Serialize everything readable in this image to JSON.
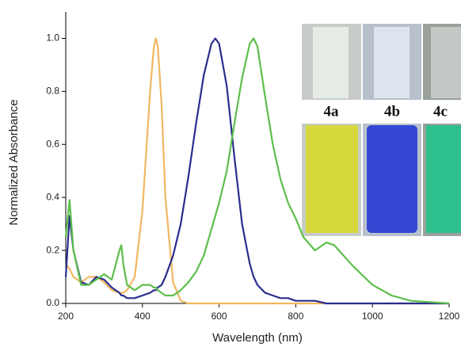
{
  "chart_data": {
    "type": "line",
    "x_label": "Wavelength (nm)",
    "y_label": "Normalized Absorbance",
    "x": [
      200,
      210,
      220,
      240,
      260,
      280,
      300,
      320,
      340,
      345,
      350,
      360,
      380,
      400,
      420,
      430,
      435,
      440,
      450,
      460,
      480,
      500,
      520,
      540,
      560,
      580,
      590,
      600,
      620,
      640,
      660,
      680,
      690,
      700,
      720,
      740,
      760,
      780,
      800,
      820,
      850,
      880,
      900,
      950,
      1000,
      1050,
      1100,
      1150,
      1200
    ],
    "series": [
      {
        "name": "4a",
        "color": "#f0b860",
        "values": [
          0.15,
          0.13,
          0.1,
          0.08,
          0.1,
          0.1,
          0.08,
          0.05,
          0.04,
          0.04,
          0.04,
          0.05,
          0.1,
          0.35,
          0.8,
          0.97,
          1.0,
          0.97,
          0.75,
          0.4,
          0.08,
          0.01,
          0,
          0,
          0,
          0,
          0,
          0,
          0,
          0,
          0,
          0,
          0,
          0,
          0,
          0,
          0,
          0,
          0,
          0,
          0,
          0,
          0,
          0,
          0,
          0,
          0,
          0,
          0
        ]
      },
      {
        "name": "4b",
        "color": "#2a2d8c",
        "values": [
          0.1,
          0.33,
          0.2,
          0.08,
          0.07,
          0.1,
          0.09,
          0.06,
          0.04,
          0.03,
          0.03,
          0.02,
          0.02,
          0.03,
          0.04,
          0.05,
          0.05,
          0.06,
          0.07,
          0.1,
          0.18,
          0.3,
          0.48,
          0.68,
          0.86,
          0.98,
          1.0,
          0.98,
          0.82,
          0.55,
          0.3,
          0.15,
          0.1,
          0.07,
          0.04,
          0.03,
          0.02,
          0.02,
          0.01,
          0.01,
          0.01,
          0,
          0,
          0,
          0,
          0,
          0,
          0,
          0
        ]
      },
      {
        "name": "4c",
        "color": "#5cbf4a",
        "values": [
          0.25,
          0.39,
          0.2,
          0.07,
          0.07,
          0.09,
          0.11,
          0.09,
          0.2,
          0.22,
          0.15,
          0.07,
          0.05,
          0.07,
          0.07,
          0.06,
          0.06,
          0.05,
          0.04,
          0.03,
          0.03,
          0.05,
          0.08,
          0.12,
          0.18,
          0.28,
          0.33,
          0.38,
          0.5,
          0.68,
          0.85,
          0.98,
          1.0,
          0.97,
          0.78,
          0.6,
          0.47,
          0.38,
          0.32,
          0.25,
          0.2,
          0.23,
          0.22,
          0.14,
          0.07,
          0.03,
          0.01,
          0.005,
          0
        ]
      }
    ],
    "xlim": [
      200,
      1200
    ],
    "xticks": [
      200,
      400,
      600,
      800,
      1000,
      1200
    ],
    "ylim": [
      0,
      1.1
    ],
    "yticks": [
      {
        "value": 0,
        "label": "0.0"
      },
      0.2,
      0.4,
      0.6,
      0.8,
      {
        "value": 1,
        "label": "1.0"
      }
    ]
  }
}
